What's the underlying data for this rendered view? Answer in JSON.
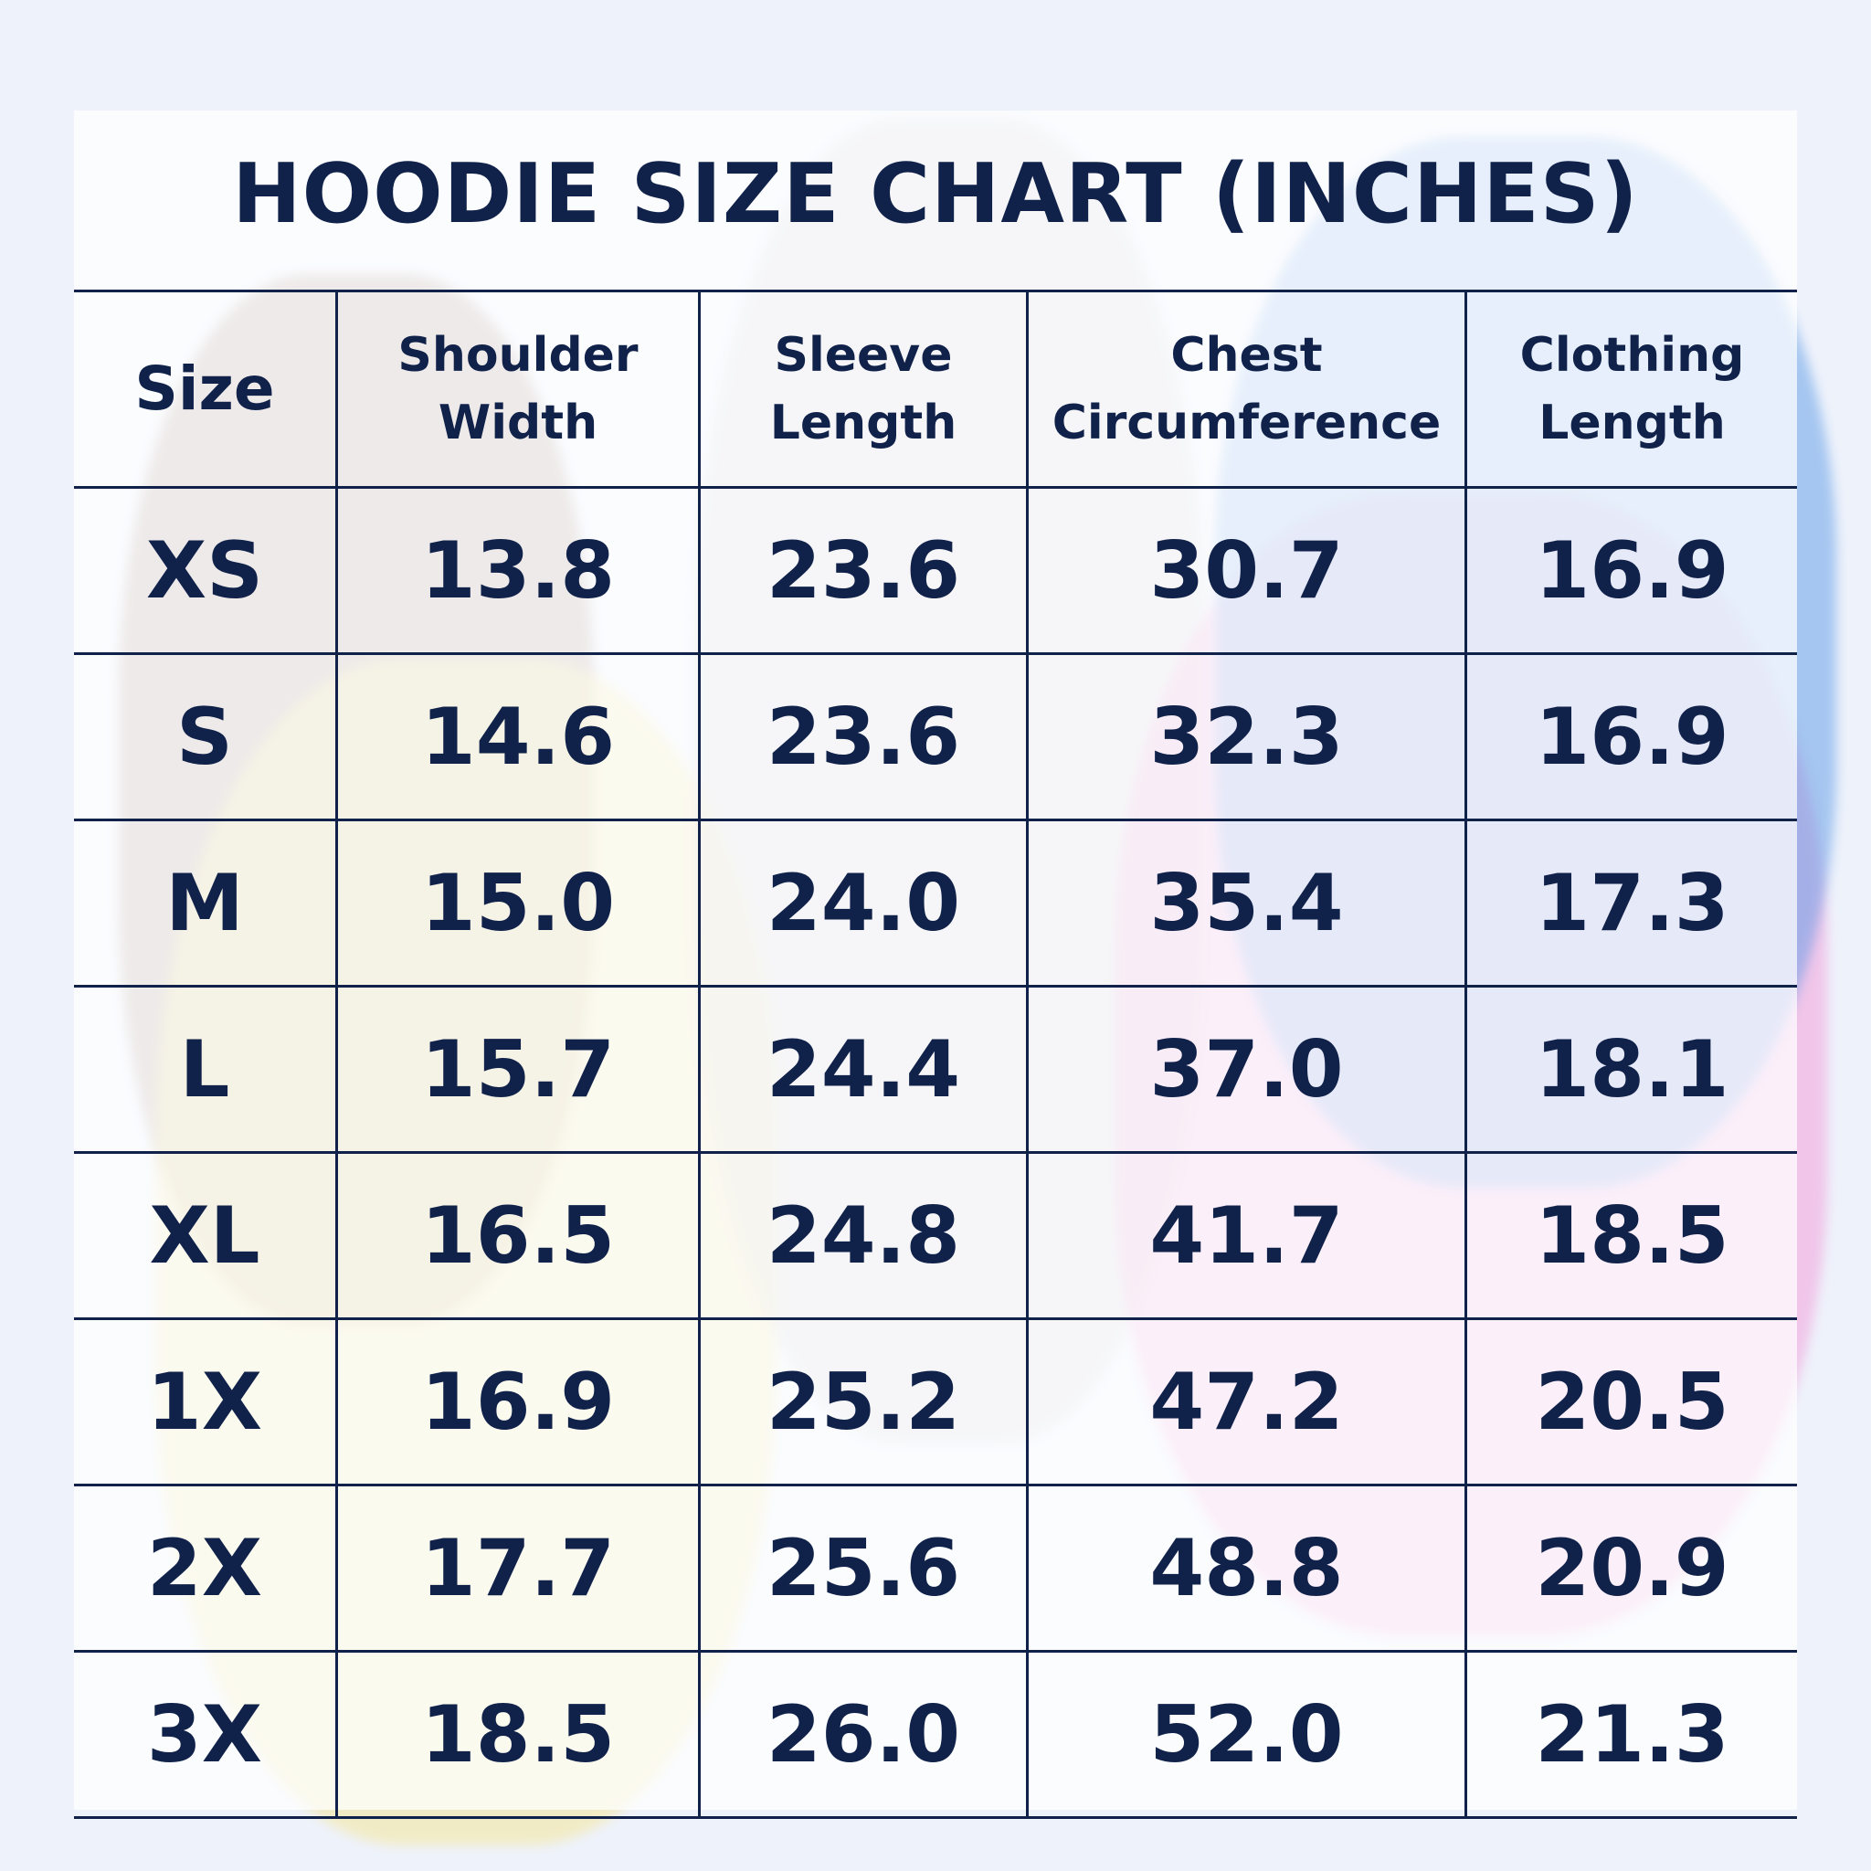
{
  "title": "HOODIE SIZE CHART (INCHES)",
  "table": {
    "header": [
      [
        "Size"
      ],
      [
        "Shoulder",
        "Width"
      ],
      [
        "Sleeve",
        "Length"
      ],
      [
        "Chest",
        "Circumference"
      ],
      [
        "Clothing",
        "Length"
      ]
    ],
    "rows": [
      [
        "XS",
        "13.8",
        "23.6",
        "30.7",
        "16.9"
      ],
      [
        "S",
        "14.6",
        "23.6",
        "32.3",
        "16.9"
      ],
      [
        "M",
        "15.0",
        "24.0",
        "35.4",
        "17.3"
      ],
      [
        "L",
        "15.7",
        "24.4",
        "37.0",
        "18.1"
      ],
      [
        "XL",
        "16.5",
        "24.8",
        "41.7",
        "18.5"
      ],
      [
        "1X",
        "16.9",
        "25.2",
        "47.2",
        "20.5"
      ],
      [
        "2X",
        "17.7",
        "25.6",
        "48.8",
        "20.9"
      ],
      [
        "3X",
        "18.5",
        "26.0",
        "52.0",
        "21.3"
      ]
    ]
  }
}
